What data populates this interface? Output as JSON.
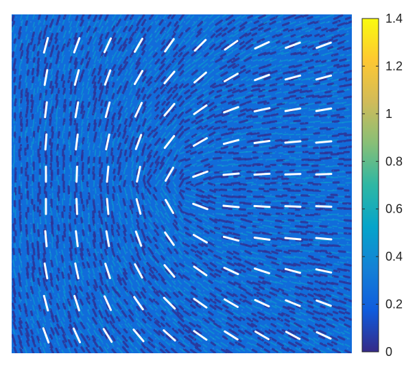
{
  "chart_data": {
    "type": "heatmap",
    "title": "",
    "xlabel": "",
    "ylabel": "",
    "description_colormap": "parula",
    "colorbar": {
      "min": 0,
      "max": 1.4,
      "ticks": [
        0,
        0.2,
        0.4,
        0.6,
        0.8,
        1,
        1.2,
        1.4
      ],
      "tick_labels": [
        "0",
        "0.2",
        "0.4",
        "0.6",
        "0.8",
        "1",
        "1.2",
        "1.4"
      ]
    },
    "field": {
      "background_value": 0.25,
      "stripe_value": 0.45,
      "gap_value": 0.03
    },
    "overlay": {
      "type": "director-field",
      "color": "#ffffff",
      "grid_columns": 10,
      "grid_rows": 10,
      "angles_deg": [
        [
          75,
          70,
          65,
          60,
          55,
          45,
          35,
          25,
          20,
          20
        ],
        [
          80,
          75,
          70,
          60,
          50,
          40,
          30,
          20,
          15,
          15
        ],
        [
          83,
          80,
          75,
          65,
          50,
          35,
          20,
          12,
          10,
          10
        ],
        [
          86,
          83,
          78,
          70,
          52,
          30,
          15,
          8,
          5,
          5
        ],
        [
          90,
          88,
          85,
          78,
          60,
          20,
          5,
          3,
          2,
          2
        ],
        [
          90,
          92,
          95,
          105,
          120,
          160,
          175,
          177,
          178,
          178
        ],
        [
          95,
          97,
          100,
          110,
          125,
          150,
          165,
          172,
          175,
          175
        ],
        [
          100,
          102,
          108,
          118,
          130,
          145,
          155,
          162,
          165,
          168
        ],
        [
          105,
          108,
          115,
          125,
          135,
          145,
          150,
          155,
          158,
          160
        ],
        [
          110,
          115,
          122,
          130,
          138,
          145,
          148,
          150,
          152,
          155
        ]
      ]
    }
  }
}
